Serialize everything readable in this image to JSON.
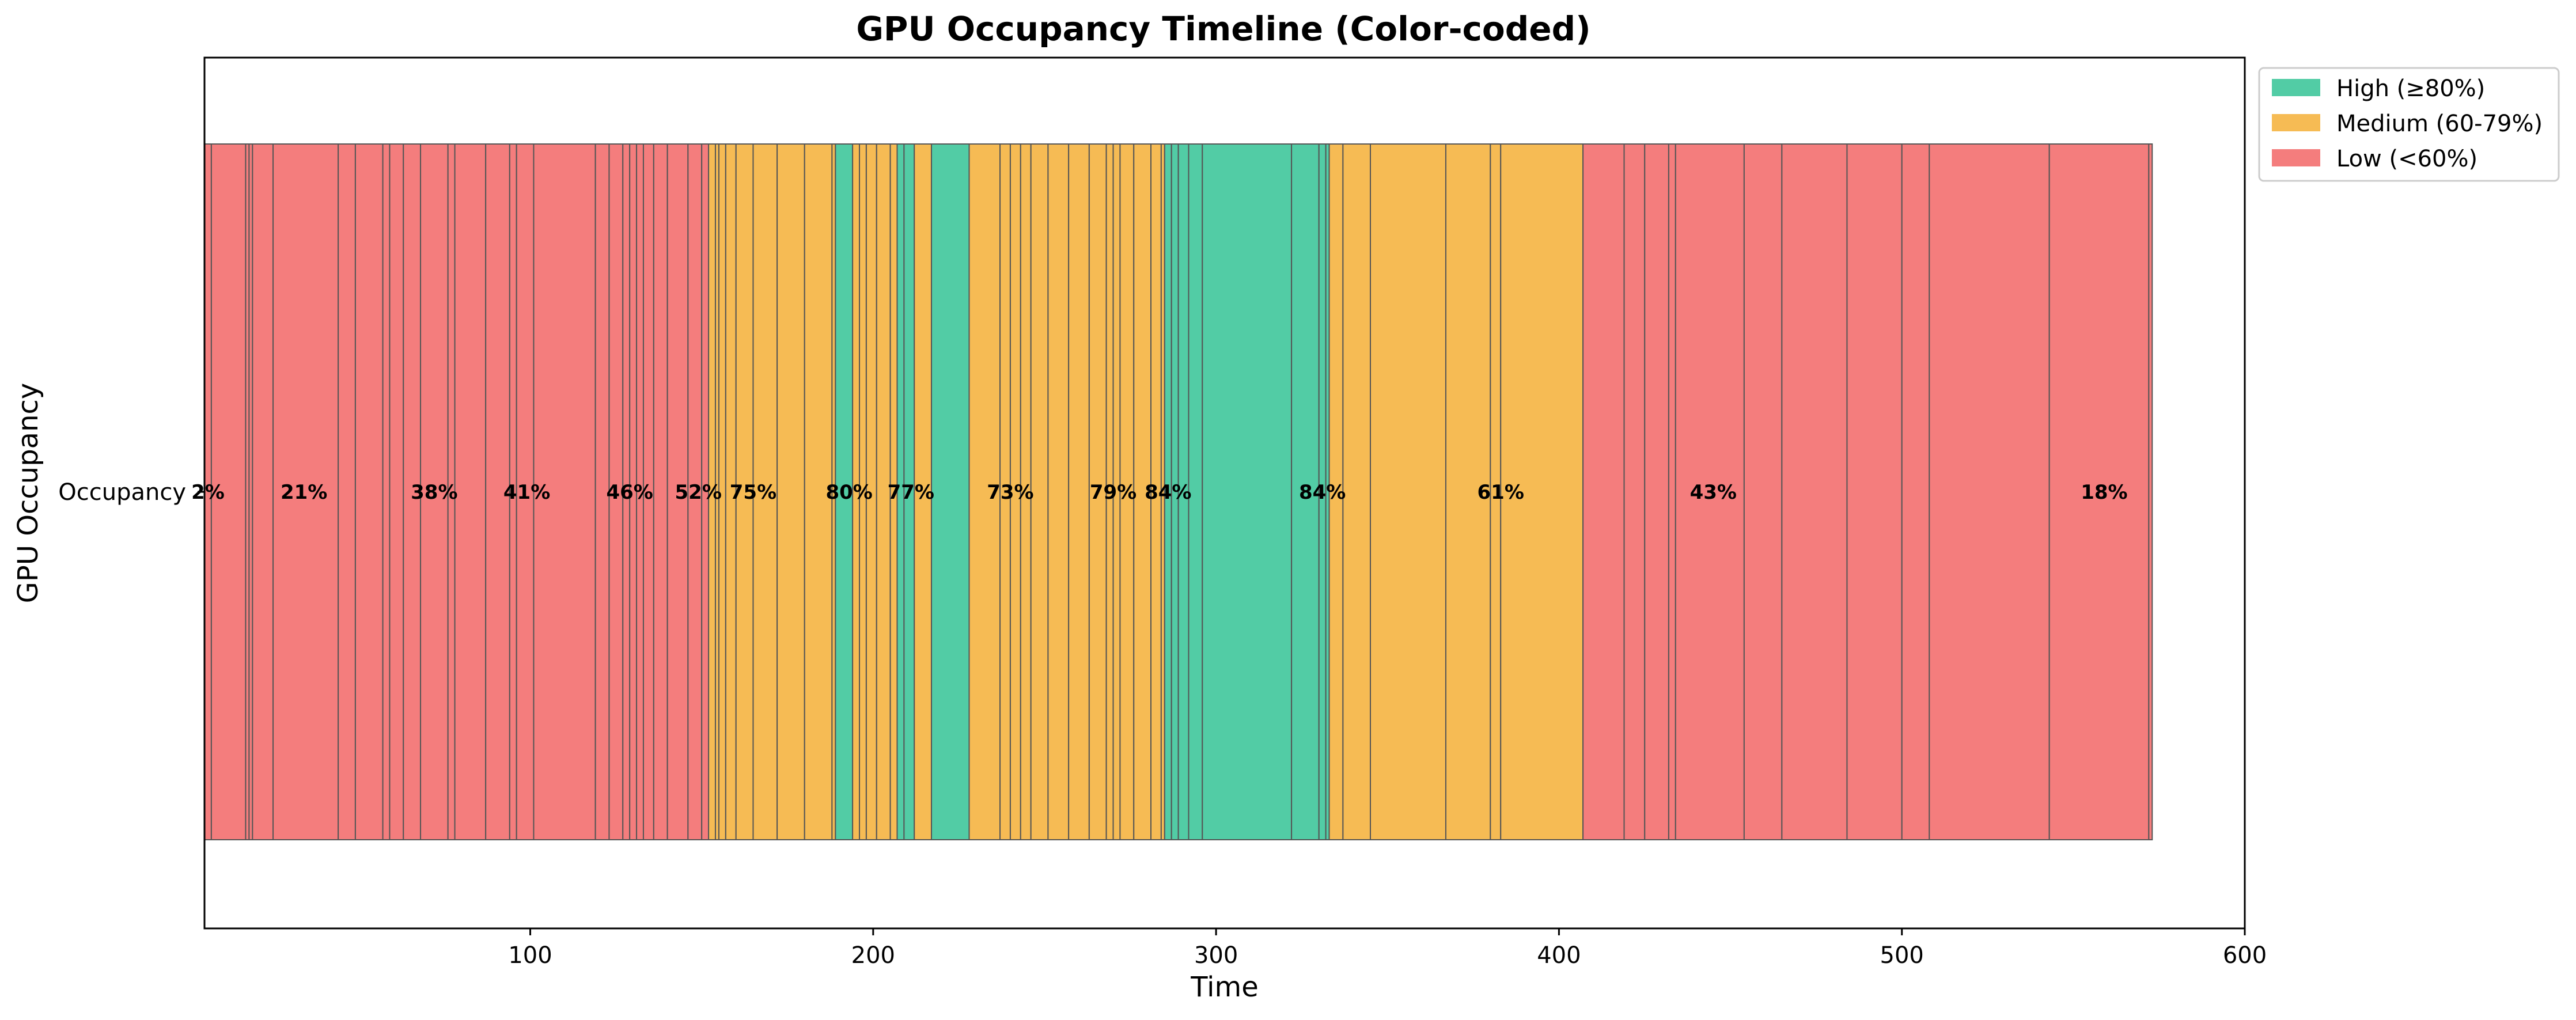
{
  "chart_data": {
    "type": "bar",
    "orientation": "horizontal-timeline",
    "title": "GPU Occupancy Timeline (Color-coded)",
    "xlabel": "Time",
    "ylabel": "GPU Occupancy",
    "category": "Occupancy",
    "xlim": [
      5,
      600
    ],
    "x_ticks": [
      100,
      200,
      300,
      400,
      500,
      600
    ],
    "x_tick_labels": [
      "100",
      "200",
      "300",
      "400",
      "500",
      "600"
    ],
    "grid": false,
    "legend": {
      "placement": "outside-top-right",
      "entries": [
        {
          "key": "high",
          "label": "High (≥80%)",
          "color": "#52cca5"
        },
        {
          "key": "medium",
          "label": "Medium (60-79%)",
          "color": "#f6bb54"
        },
        {
          "key": "low",
          "label": "Low (<60%)",
          "color": "#f47d7d"
        }
      ]
    },
    "boundaries": [
      5,
      7,
      17,
      18,
      19,
      25,
      44,
      49,
      57,
      59,
      63,
      68,
      76,
      78,
      87,
      94,
      96,
      101,
      119,
      123,
      127,
      129,
      131,
      133,
      136,
      140,
      146,
      150,
      152,
      154,
      155,
      157,
      160,
      165,
      172,
      180,
      188,
      189,
      194,
      196,
      198,
      201,
      205,
      207,
      209,
      212,
      217,
      228,
      237,
      240,
      243,
      246,
      251,
      257,
      263,
      268,
      270,
      272,
      276,
      281,
      284,
      285,
      287,
      289,
      292,
      296,
      322,
      330,
      332,
      333,
      337,
      345,
      367,
      380,
      383,
      407,
      419,
      425,
      432,
      434,
      454,
      465,
      484,
      500,
      508,
      543,
      572,
      573
    ],
    "segment_levels": [
      "low",
      "low",
      "low",
      "low",
      "low",
      "low",
      "low",
      "low",
      "low",
      "low",
      "low",
      "low",
      "low",
      "low",
      "low",
      "low",
      "low",
      "low",
      "low",
      "low",
      "low",
      "low",
      "low",
      "low",
      "low",
      "low",
      "low",
      "low",
      "medium",
      "medium",
      "medium",
      "medium",
      "medium",
      "medium",
      "medium",
      "medium",
      "medium",
      "high",
      "medium",
      "medium",
      "medium",
      "medium",
      "medium",
      "high",
      "high",
      "medium",
      "high",
      "medium",
      "medium",
      "medium",
      "medium",
      "medium",
      "medium",
      "medium",
      "medium",
      "medium",
      "medium",
      "medium",
      "medium",
      "medium",
      "medium",
      "high",
      "high",
      "high",
      "high",
      "high",
      "high",
      "high",
      "high",
      "medium",
      "medium",
      "medium",
      "medium",
      "medium",
      "medium",
      "low",
      "low",
      "low",
      "low",
      "low",
      "low",
      "low",
      "low",
      "low",
      "low",
      "low",
      "low",
      "low"
    ],
    "annotations": [
      {
        "x": 6,
        "text": "2%"
      },
      {
        "x": 34,
        "text": "21%"
      },
      {
        "x": 72,
        "text": "38%"
      },
      {
        "x": 99,
        "text": "41%"
      },
      {
        "x": 129,
        "text": "46%"
      },
      {
        "x": 149,
        "text": "52%"
      },
      {
        "x": 165,
        "text": "75%"
      },
      {
        "x": 193,
        "text": "80%"
      },
      {
        "x": 211,
        "text": "77%"
      },
      {
        "x": 240,
        "text": "73%"
      },
      {
        "x": 270,
        "text": "79%"
      },
      {
        "x": 286,
        "text": "84%"
      },
      {
        "x": 331,
        "text": "84%"
      },
      {
        "x": 383,
        "text": "61%"
      },
      {
        "x": 445,
        "text": "43%"
      },
      {
        "x": 559,
        "text": "18%"
      }
    ]
  }
}
